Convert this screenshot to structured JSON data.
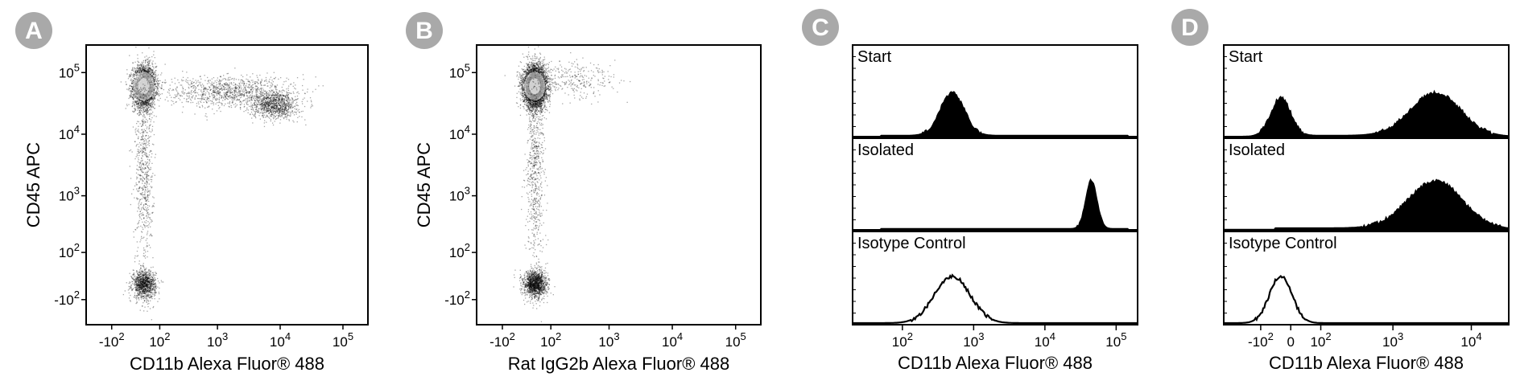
{
  "chart_data": [
    {
      "panel": "A",
      "type": "scatter",
      "xlabel": "CD11b Alexa Fluor® 488",
      "ylabel": "CD45 APC",
      "xscale": "biexponential",
      "yscale": "biexponential",
      "xticks": [
        "-10^2",
        "10^2",
        "10^3",
        "10^4",
        "10^5"
      ],
      "yticks": [
        "10^5",
        "10^4",
        "10^3",
        "10^2",
        "-10^2"
      ],
      "populations": [
        {
          "x": 30,
          "y": 60000,
          "spread_x": 0.1,
          "spread_y": 0.18,
          "weight": 0.45
        },
        {
          "x": 30,
          "y": -30,
          "spread_x": 0.1,
          "spread_y": 0.12,
          "weight": 0.16
        },
        {
          "x": 30,
          "y": 3000,
          "spread_x": 0.08,
          "spread_y": 0.9,
          "weight": 0.1
        },
        {
          "x": 1500,
          "y": 50000,
          "spread_x": 0.55,
          "spread_y": 0.14,
          "weight": 0.15
        },
        {
          "x": 8000,
          "y": 30000,
          "spread_x": 0.2,
          "spread_y": 0.12,
          "weight": 0.14
        }
      ]
    },
    {
      "panel": "B",
      "type": "scatter",
      "xlabel": "Rat IgG2b Alexa Fluor® 488",
      "ylabel": "CD45 APC",
      "xscale": "biexponential",
      "yscale": "biexponential",
      "xticks": [
        "-10^2",
        "10^2",
        "10^3",
        "10^4",
        "10^5"
      ],
      "yticks": [
        "10^5",
        "10^4",
        "10^3",
        "10^2",
        "-10^2"
      ],
      "populations": [
        {
          "x": 30,
          "y": 60000,
          "spread_x": 0.1,
          "spread_y": 0.18,
          "weight": 0.66
        },
        {
          "x": 30,
          "y": -30,
          "spread_x": 0.1,
          "spread_y": 0.12,
          "weight": 0.2
        },
        {
          "x": 30,
          "y": 3000,
          "spread_x": 0.08,
          "spread_y": 0.9,
          "weight": 0.1
        },
        {
          "x": 300,
          "y": 80000,
          "spread_x": 0.35,
          "spread_y": 0.15,
          "weight": 0.04
        }
      ]
    },
    {
      "panel": "C",
      "type": "area",
      "xlabel": "CD11b Alexa Fluor® 488",
      "xscale": "log",
      "xlim": [
        20,
        200000
      ],
      "xticks": [
        "10^2",
        "10^3",
        "10^4",
        "10^5"
      ],
      "histograms": [
        {
          "label": "Start",
          "filled": true,
          "peaks": [
            {
              "center": 500,
              "log_sd": 0.17,
              "height": 0.62
            }
          ],
          "baseline": 0.02
        },
        {
          "label": "Isolated",
          "filled": true,
          "peaks": [
            {
              "center": 45000,
              "log_sd": 0.08,
              "height": 0.7
            }
          ],
          "baseline": 0.02
        },
        {
          "label": "Isotype Control",
          "filled": false,
          "peaks": [
            {
              "center": 500,
              "log_sd": 0.25,
              "height": 0.68
            }
          ],
          "baseline": 0.0
        }
      ]
    },
    {
      "panel": "D",
      "type": "area",
      "xlabel": "CD11b Alexa Fluor® 488",
      "xscale": "biexponential",
      "xticks": [
        "-10^2",
        "0",
        "10^2",
        "10^3",
        "10^4"
      ],
      "histograms": [
        {
          "label": "Start",
          "filled": true,
          "peaks": [
            {
              "center": -30,
              "log_sd": 0.08,
              "height": 0.55
            },
            {
              "center": 3500,
              "log_sd": 0.2,
              "height": 0.62
            }
          ],
          "baseline": 0.02
        },
        {
          "label": "Isolated",
          "filled": true,
          "peaks": [
            {
              "center": 3500,
              "log_sd": 0.22,
              "height": 0.68
            }
          ],
          "baseline": 0.03
        },
        {
          "label": "Isotype Control",
          "filled": false,
          "peaks": [
            {
              "center": -30,
              "log_sd": 0.09,
              "height": 0.68
            }
          ],
          "baseline": 0.0
        }
      ]
    }
  ]
}
